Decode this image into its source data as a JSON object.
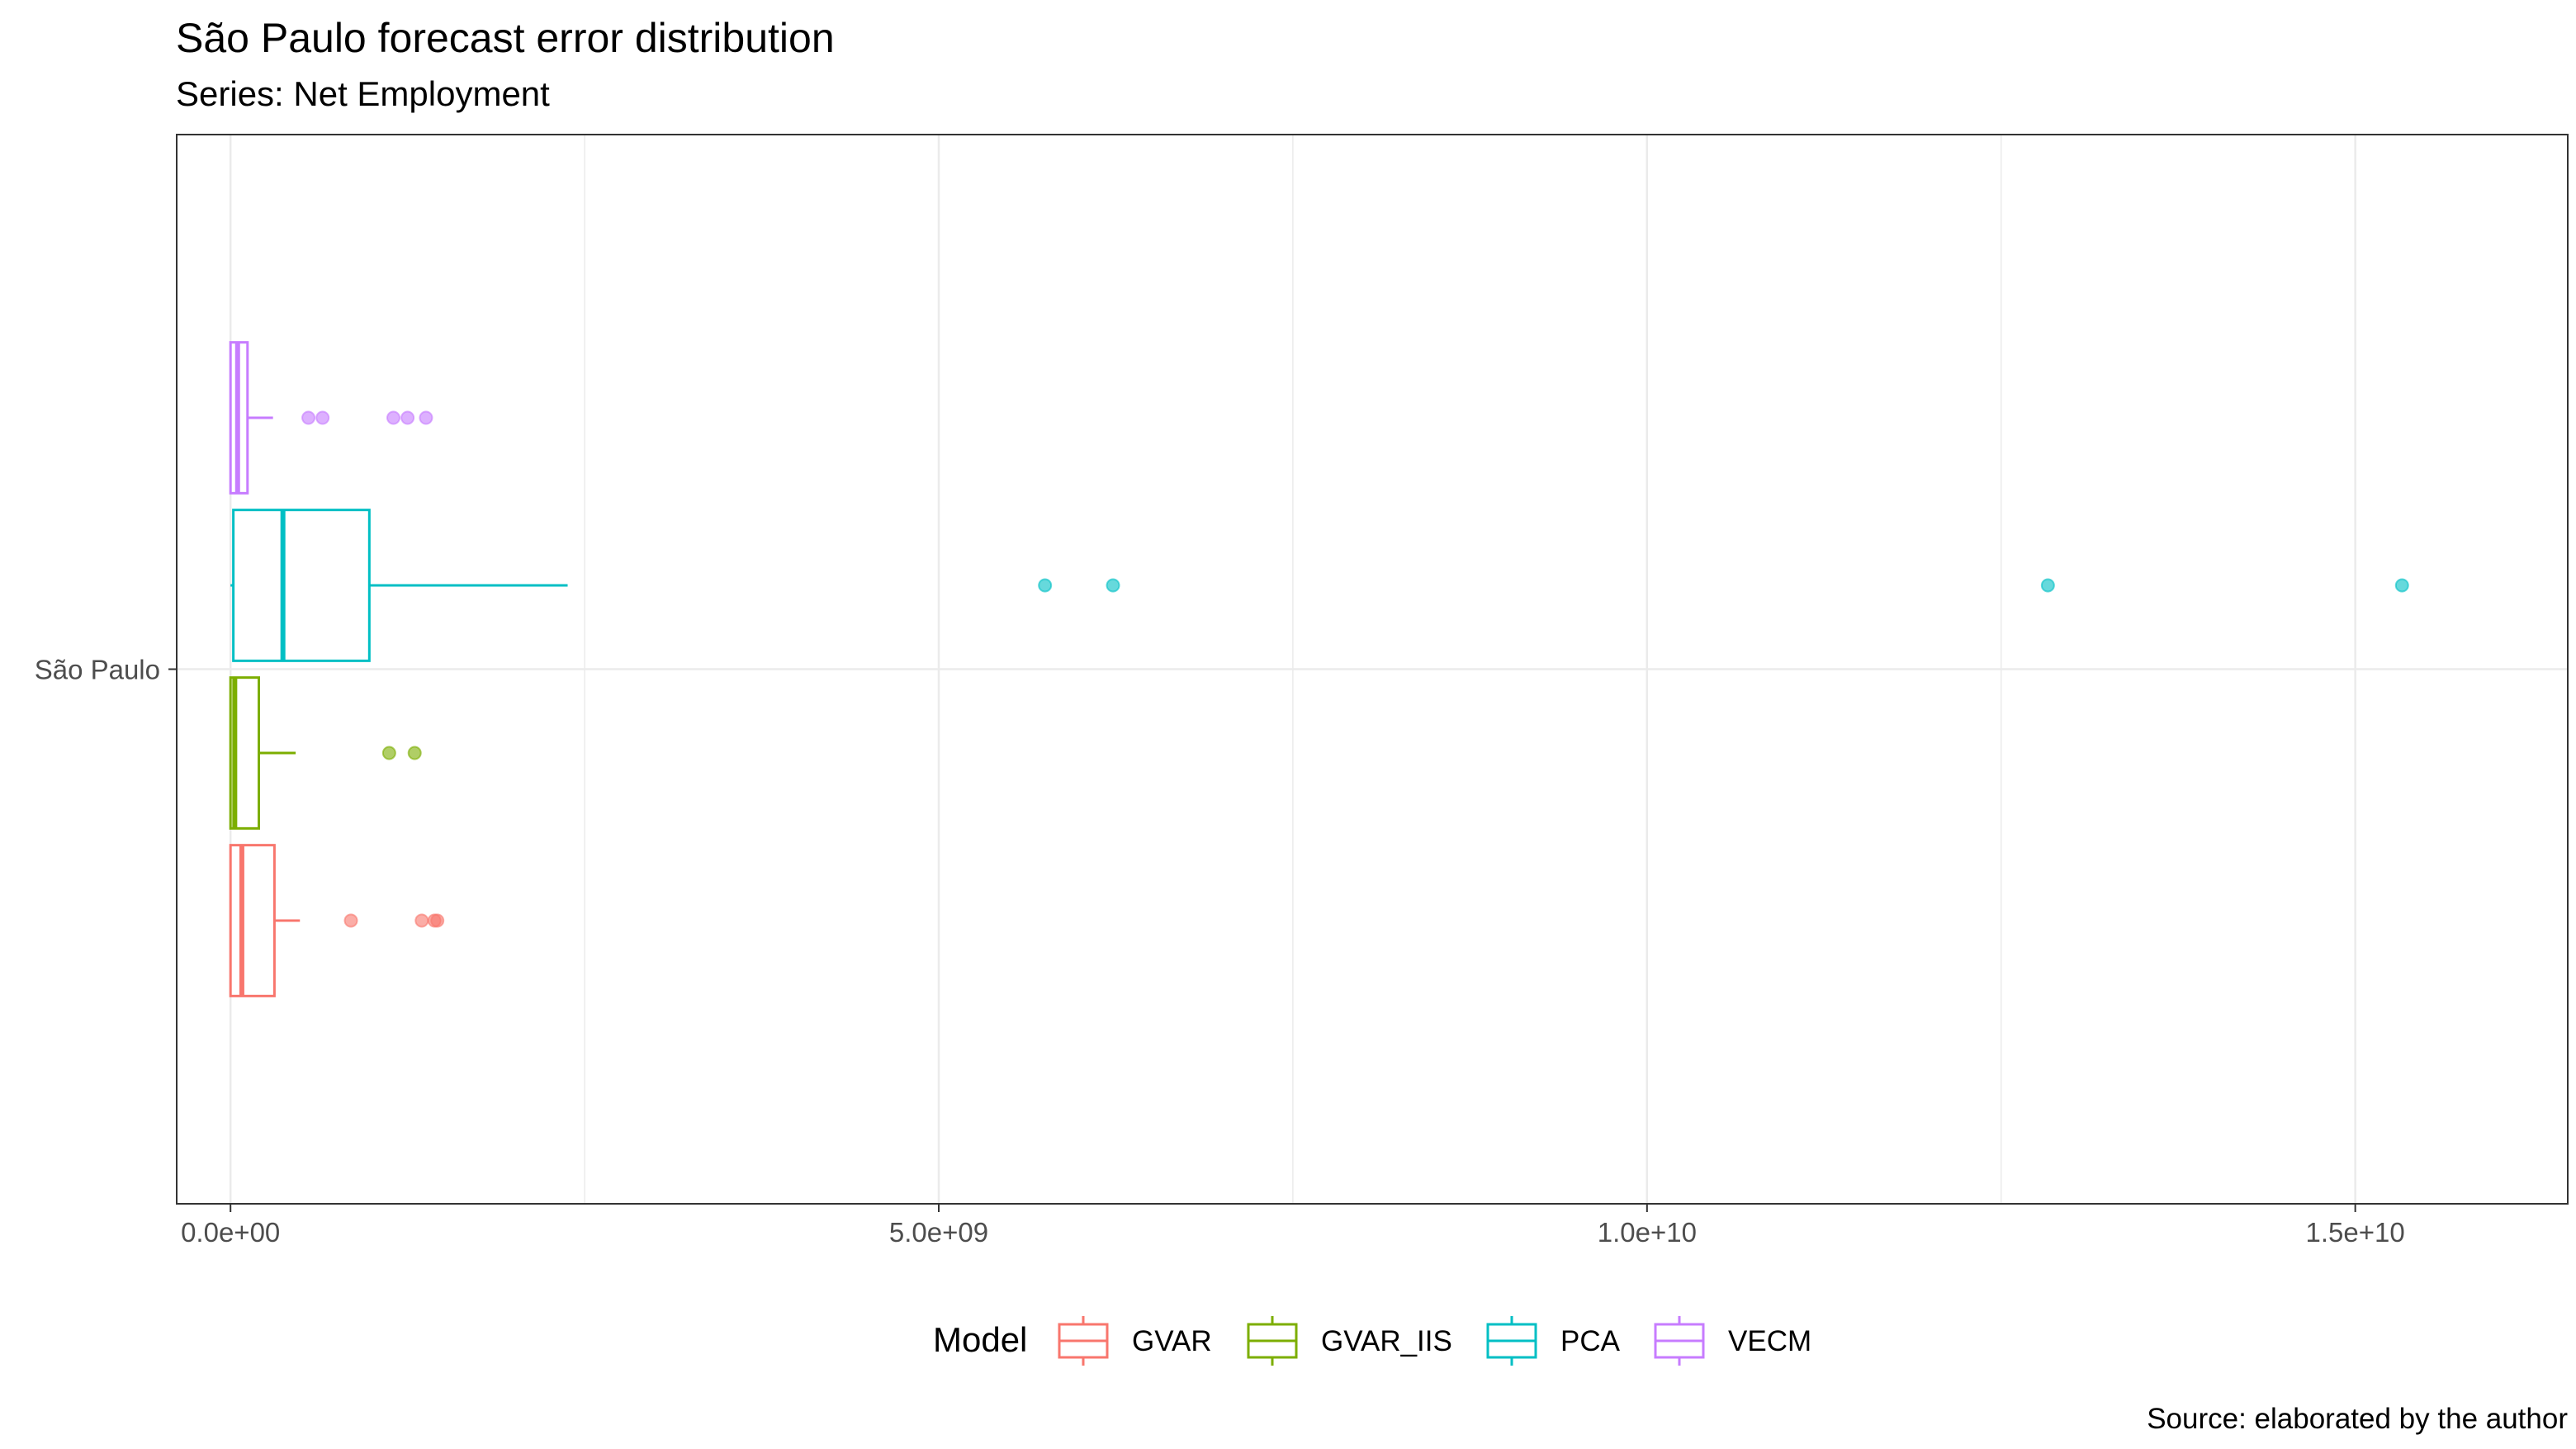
{
  "title": "São Paulo forecast error distribution",
  "subtitle": "Series: Net Employment",
  "caption": "Source: elaborated by the author",
  "chart_data": {
    "type": "boxplot",
    "orientation": "horizontal",
    "title": "São Paulo forecast error distribution",
    "subtitle": "Series: Net Employment",
    "xlabel": "",
    "ylabel": "",
    "categories": [
      "São Paulo"
    ],
    "xlim": [
      -380000000.0,
      16500000000.0
    ],
    "x_ticks": [
      0,
      5000000000,
      10000000000,
      15000000000
    ],
    "x_tick_labels": [
      "0.0e+00",
      "5.0e+09",
      "1.0e+10",
      "1.5e+10"
    ],
    "grid": true,
    "legend": {
      "title": "Model",
      "position": "bottom"
    },
    "series": [
      {
        "name": "GVAR",
        "color": "#F8766D",
        "whisker_low": 0,
        "q1": 0,
        "median": 80000000,
        "q3": 310000000,
        "whisker_high": 490000000,
        "outliers": [
          850000000,
          1350000000,
          1440000000,
          1460000000
        ]
      },
      {
        "name": "GVAR_IIS",
        "color": "#7CAE00",
        "whisker_low": 0,
        "q1": 0,
        "median": 30000000,
        "q3": 200000000,
        "whisker_high": 460000000,
        "outliers": [
          1120000000,
          1300000000
        ]
      },
      {
        "name": "PCA",
        "color": "#00BFC4",
        "whisker_low": 0,
        "q1": 20000000,
        "median": 370000000,
        "q3": 980000000,
        "whisker_high": 2380000000,
        "outliers": [
          5750000000,
          6230000000,
          12830000000,
          15330000000
        ]
      },
      {
        "name": "VECM",
        "color": "#C77CFF",
        "whisker_low": 0,
        "q1": 0,
        "median": 50000000,
        "q3": 120000000,
        "whisker_high": 300000000,
        "outliers": [
          550000000,
          650000000,
          1150000000,
          1250000000,
          1380000000
        ]
      }
    ]
  }
}
